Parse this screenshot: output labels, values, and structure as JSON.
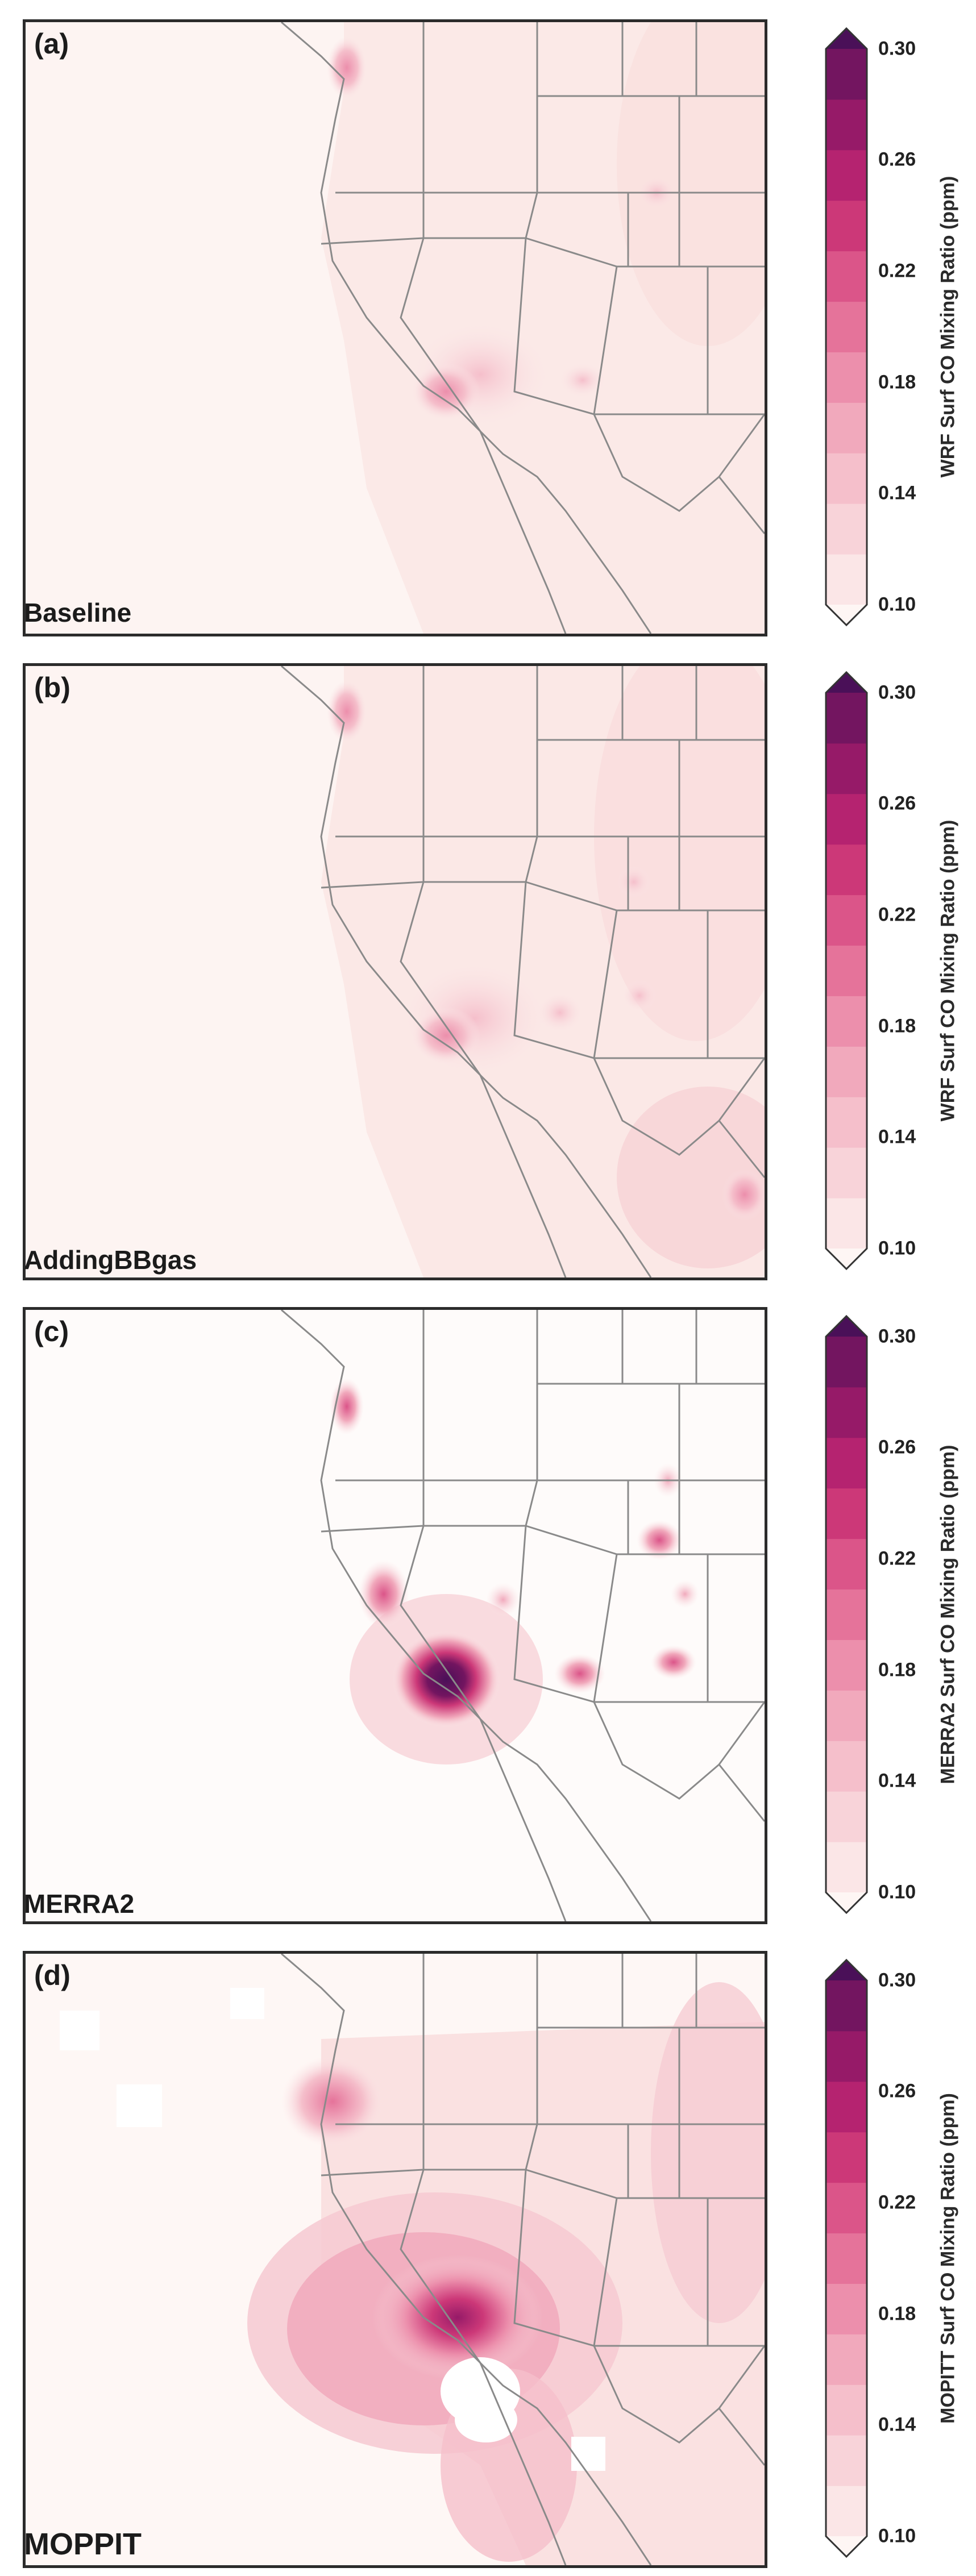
{
  "colorbar": {
    "ticks": [
      "0.30",
      "0.26",
      "0.22",
      "0.18",
      "0.14",
      "0.10"
    ],
    "min": 0.1,
    "max": 0.3,
    "colors": [
      "#fef6f4",
      "#fbe6e7",
      "#f8d3d9",
      "#f5bfcb",
      "#f1a9bc",
      "#ec8fac",
      "#e5739a",
      "#db5589",
      "#cc3878",
      "#b52370",
      "#961a68",
      "#731560",
      "#4a1058"
    ]
  },
  "panels": [
    {
      "letter": "(a)",
      "name": "Baseline",
      "colorbar_label": "WRF Surf CO Mixing Ratio (ppm)"
    },
    {
      "letter": "(b)",
      "name": "AddingBBgas",
      "colorbar_label": "WRF Surf CO Mixing Ratio (ppm)"
    },
    {
      "letter": "(c)",
      "name": "MERRA2",
      "colorbar_label": "MERRA2 Surf CO Mixing Ratio (ppm)"
    },
    {
      "letter": "(d)",
      "name": "MOPPIT",
      "colorbar_label": "MOPITT Surf CO Mixing Ratio (ppm)"
    }
  ]
}
